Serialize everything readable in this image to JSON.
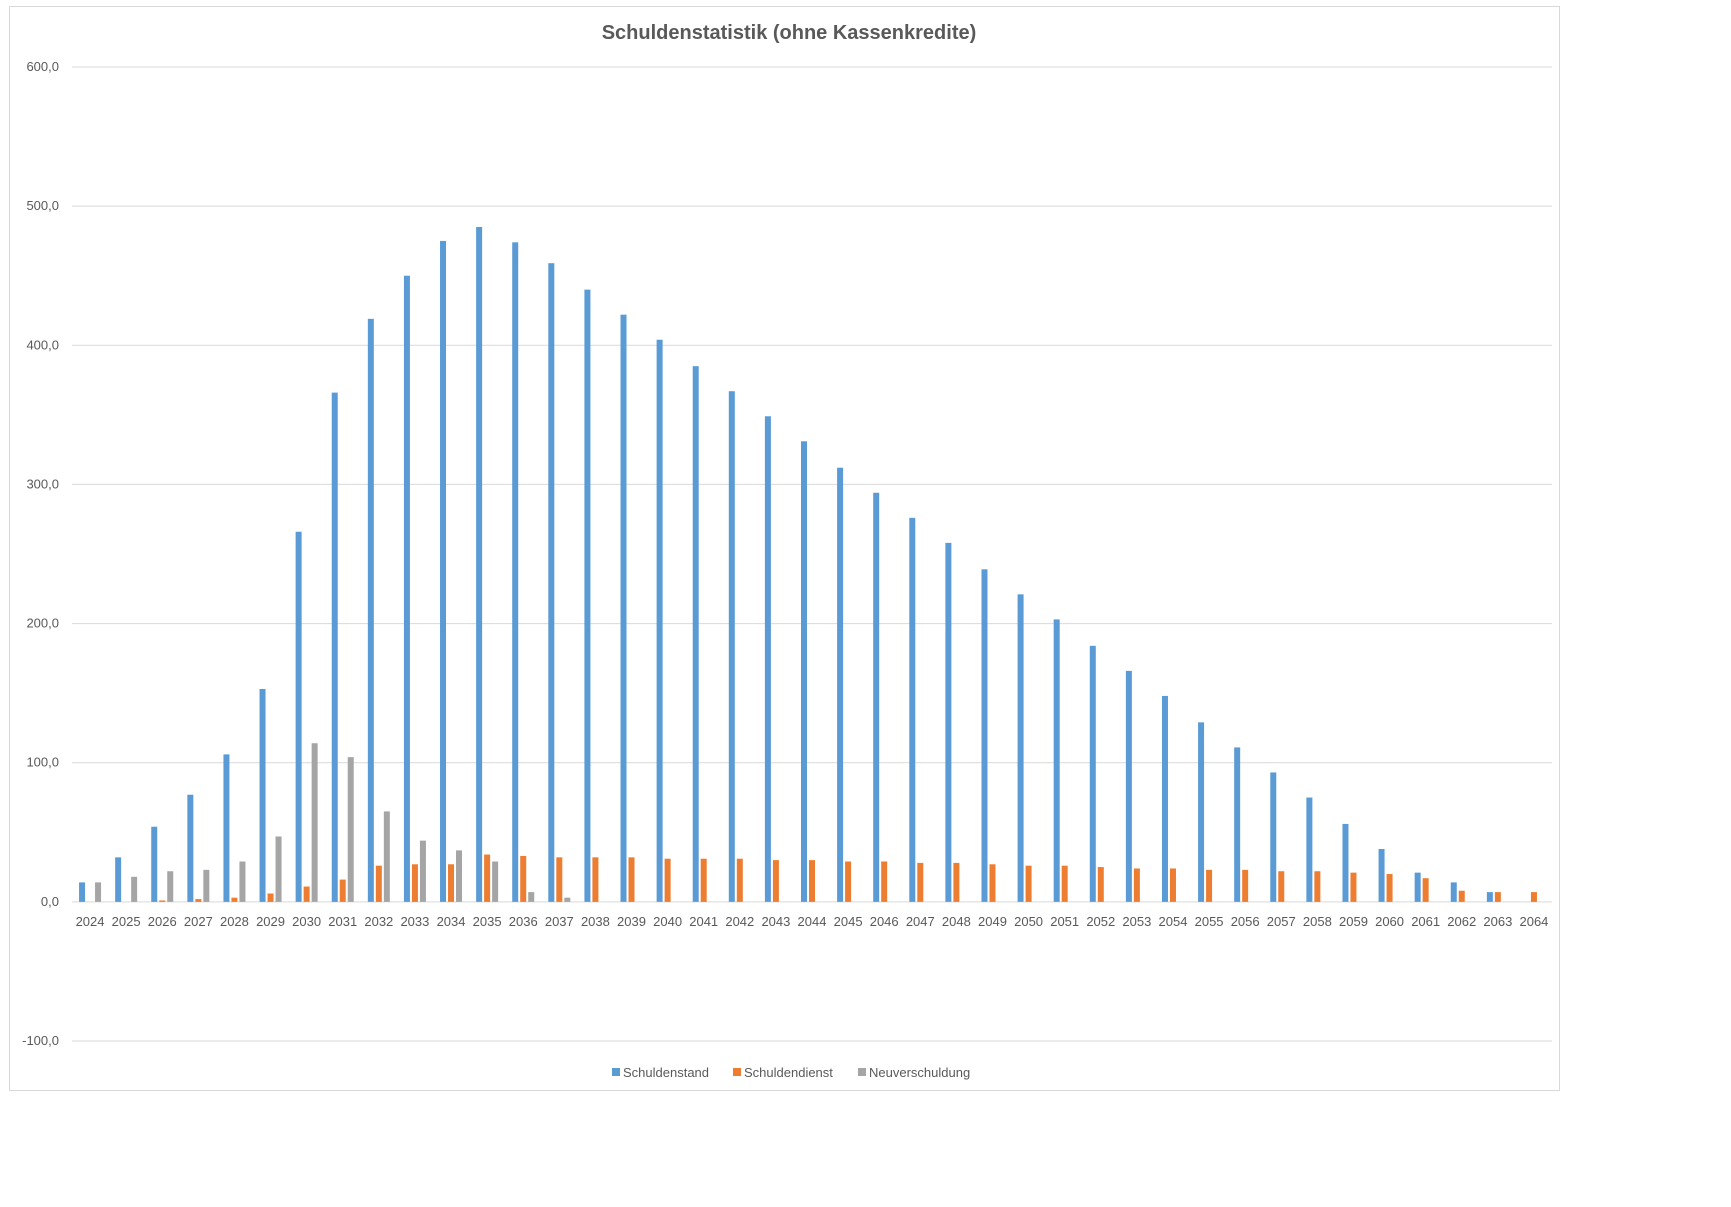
{
  "chart_data": {
    "type": "bar",
    "title": "Schuldenstatistik (ohne Kassenkredite)",
    "xlabel": "",
    "ylabel": "",
    "ylim": [
      -100,
      600
    ],
    "yticks": [
      "-100,0",
      "0,0",
      "100,0",
      "200,0",
      "300,0",
      "400,0",
      "500,0",
      "600,0"
    ],
    "grid": true,
    "legend_position": "bottom",
    "categories": [
      "2024",
      "2025",
      "2026",
      "2027",
      "2028",
      "2029",
      "2030",
      "2031",
      "2032",
      "2033",
      "2034",
      "2035",
      "2036",
      "2037",
      "2038",
      "2039",
      "2040",
      "2041",
      "2042",
      "2043",
      "2044",
      "2045",
      "2046",
      "2047",
      "2048",
      "2049",
      "2050",
      "2051",
      "2052",
      "2053",
      "2054",
      "2055",
      "2056",
      "2057",
      "2058",
      "2059",
      "2060",
      "2061",
      "2062",
      "2063",
      "2064"
    ],
    "series": [
      {
        "name": "Schuldenstand",
        "color": "#5b9bd5",
        "values": [
          14,
          32,
          54,
          77,
          106,
          153,
          266,
          366,
          419,
          450,
          475,
          485,
          474,
          459,
          440,
          422,
          404,
          385,
          367,
          349,
          331,
          312,
          294,
          276,
          258,
          239,
          221,
          203,
          184,
          166,
          148,
          129,
          111,
          93,
          75,
          56,
          38,
          21,
          14,
          7,
          0
        ]
      },
      {
        "name": "Schuldendienst",
        "color": "#ed7d31",
        "values": [
          0,
          0,
          1,
          2,
          3,
          6,
          11,
          16,
          26,
          27,
          27,
          34,
          33,
          32,
          32,
          32,
          31,
          31,
          31,
          30,
          30,
          29,
          29,
          28,
          28,
          27,
          26,
          26,
          25,
          24,
          24,
          23,
          23,
          22,
          22,
          21,
          20,
          17,
          8,
          7,
          7
        ]
      },
      {
        "name": "Neuverschuldung",
        "color": "#a5a5a5",
        "values": [
          14,
          18,
          22,
          23,
          29,
          47,
          114,
          104,
          65,
          44,
          37,
          29,
          7,
          3,
          0,
          0,
          0,
          0,
          0,
          0,
          0,
          0,
          0,
          0,
          0,
          0,
          0,
          0,
          0,
          0,
          0,
          0,
          0,
          0,
          0,
          0,
          0,
          0,
          0,
          0,
          0
        ]
      }
    ]
  }
}
